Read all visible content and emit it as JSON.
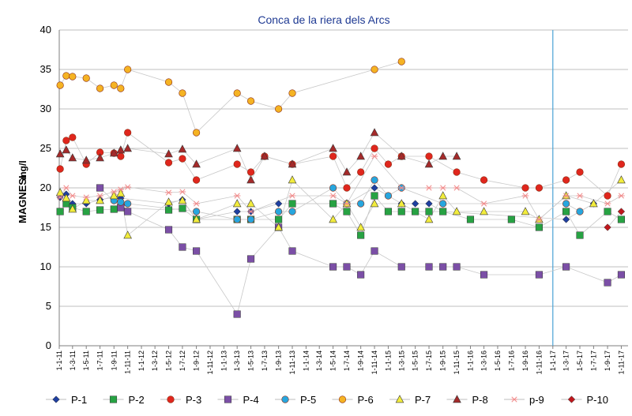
{
  "chart_data": {
    "type": "line",
    "title": "Conca de la riera dels Arcs",
    "ylabel_main": "MAGNESI",
    "ylabel_unit": "mg/l",
    "ylim": [
      0,
      40
    ],
    "yticks": [
      "0",
      "5",
      "10",
      "15",
      "20",
      "25",
      "30",
      "35",
      "40"
    ],
    "x_start": "2011-01-01",
    "x_end": "2017-12-01",
    "xticks": [
      "1-1-11",
      "1-3-11",
      "1-5-11",
      "1-7-11",
      "1-9-11",
      "1-11-11",
      "1-1-12",
      "1-3-12",
      "1-5-12",
      "1-7-12",
      "1-9-12",
      "1-11-12",
      "1-1-13",
      "1-3-13",
      "1-5-13",
      "1-7-13",
      "1-9-13",
      "1-11-13",
      "1-1-14",
      "1-3-14",
      "1-5-14",
      "1-7-14",
      "1-9-14",
      "1-11-14",
      "1-1-15",
      "1-3-15",
      "1-5-15",
      "1-7-15",
      "1-9-15",
      "1-11-15",
      "1-1-16",
      "1-3-16",
      "1-5-16",
      "1-7-16",
      "1-9-16",
      "1-11-16",
      "1-1-17",
      "1-3-17",
      "1-5-17",
      "1-7-17",
      "1-9-17",
      "1-11-17"
    ],
    "vline_date": "2017-01-01",
    "grid": "horizontal",
    "legend_position": "bottom",
    "series": [
      {
        "name": "P-1",
        "color": "#1f3fa0",
        "marker": "diamond",
        "points": [
          [
            "2011-01-05",
            18.8
          ],
          [
            "2011-02-01",
            19.2
          ],
          [
            "2011-03-01",
            18
          ],
          [
            "2011-05-01",
            18
          ],
          [
            "2011-07-01",
            18.5
          ],
          [
            "2011-09-01",
            18.8
          ],
          [
            "2011-10-01",
            18.7
          ],
          [
            "2012-05-01",
            18
          ],
          [
            "2012-07-01",
            18.5
          ],
          [
            "2012-09-01",
            16
          ],
          [
            "2013-03-01",
            17
          ],
          [
            "2013-05-01",
            17
          ],
          [
            "2013-09-01",
            18
          ],
          [
            "2014-07-01",
            18
          ],
          [
            "2014-11-01",
            20
          ],
          [
            "2015-01-01",
            19
          ],
          [
            "2015-03-01",
            18
          ],
          [
            "2015-05-01",
            18
          ],
          [
            "2015-07-01",
            18
          ],
          [
            "2015-09-01",
            17
          ],
          [
            "2017-03-01",
            16
          ],
          [
            "2017-05-01",
            17
          ],
          [
            "2017-07-01",
            18
          ]
        ]
      },
      {
        "name": "P-2",
        "color": "#27a243",
        "marker": "square",
        "points": [
          [
            "2011-01-05",
            17
          ],
          [
            "2011-02-01",
            18
          ],
          [
            "2011-03-01",
            17.5
          ],
          [
            "2011-05-01",
            17
          ],
          [
            "2011-07-01",
            17.2
          ],
          [
            "2011-09-01",
            17.3
          ],
          [
            "2011-10-01",
            17.5
          ],
          [
            "2012-05-01",
            17.2
          ],
          [
            "2012-07-01",
            17.4
          ],
          [
            "2012-09-01",
            16
          ],
          [
            "2013-03-01",
            16
          ],
          [
            "2013-05-01",
            16
          ],
          [
            "2013-09-01",
            16
          ],
          [
            "2013-11-01",
            18
          ],
          [
            "2014-05-01",
            18
          ],
          [
            "2014-07-01",
            17
          ],
          [
            "2014-09-01",
            14
          ],
          [
            "2014-11-01",
            19
          ],
          [
            "2015-01-01",
            17
          ],
          [
            "2015-03-01",
            17
          ],
          [
            "2015-05-01",
            17
          ],
          [
            "2015-07-01",
            17
          ],
          [
            "2015-09-01",
            17
          ],
          [
            "2016-01-01",
            16
          ],
          [
            "2016-07-01",
            16
          ],
          [
            "2016-11-01",
            15
          ],
          [
            "2017-03-01",
            17
          ],
          [
            "2017-05-01",
            14
          ],
          [
            "2017-09-01",
            17
          ],
          [
            "2017-11-01",
            16
          ]
        ]
      },
      {
        "name": "P-3",
        "color": "#e0261d",
        "marker": "circle",
        "points": [
          [
            "2011-01-05",
            22.4
          ],
          [
            "2011-02-01",
            26
          ],
          [
            "2011-03-01",
            26.4
          ],
          [
            "2011-05-01",
            23
          ],
          [
            "2011-07-01",
            24.5
          ],
          [
            "2011-09-01",
            24.4
          ],
          [
            "2011-10-01",
            24
          ],
          [
            "2011-11-01",
            27
          ],
          [
            "2012-05-01",
            23.2
          ],
          [
            "2012-07-01",
            23.7
          ],
          [
            "2012-09-01",
            21
          ],
          [
            "2013-03-01",
            23
          ],
          [
            "2013-05-01",
            22
          ],
          [
            "2013-07-01",
            24
          ],
          [
            "2013-11-01",
            23
          ],
          [
            "2014-05-01",
            24
          ],
          [
            "2014-07-01",
            20
          ],
          [
            "2014-09-01",
            22
          ],
          [
            "2014-11-01",
            25
          ],
          [
            "2015-01-01",
            23
          ],
          [
            "2015-03-01",
            24
          ],
          [
            "2015-07-01",
            24
          ],
          [
            "2015-11-01",
            22
          ],
          [
            "2016-03-01",
            21
          ],
          [
            "2016-09-01",
            20
          ],
          [
            "2016-11-01",
            20
          ],
          [
            "2017-03-01",
            21
          ],
          [
            "2017-05-01",
            22
          ],
          [
            "2017-09-01",
            19
          ],
          [
            "2017-11-01",
            23
          ]
        ]
      },
      {
        "name": "P-4",
        "color": "#7b4fa6",
        "marker": "square",
        "points": [
          [
            "2011-07-01",
            20
          ],
          [
            "2011-10-01",
            17.5
          ],
          [
            "2011-11-01",
            17
          ],
          [
            "2012-05-01",
            14.7
          ],
          [
            "2012-07-01",
            12.5
          ],
          [
            "2012-09-01",
            12
          ],
          [
            "2013-03-01",
            4
          ],
          [
            "2013-05-01",
            11
          ],
          [
            "2013-09-01",
            15
          ],
          [
            "2013-11-01",
            12
          ],
          [
            "2014-05-01",
            10
          ],
          [
            "2014-07-01",
            10
          ],
          [
            "2014-09-01",
            9
          ],
          [
            "2014-11-01",
            12
          ],
          [
            "2015-03-01",
            10
          ],
          [
            "2015-07-01",
            10
          ],
          [
            "2015-09-01",
            10
          ],
          [
            "2015-11-01",
            10
          ],
          [
            "2016-03-01",
            9
          ],
          [
            "2016-11-01",
            9
          ],
          [
            "2017-03-01",
            10
          ],
          [
            "2017-09-01",
            8
          ],
          [
            "2017-11-01",
            9
          ]
        ]
      },
      {
        "name": "P-5",
        "color": "#27a6de",
        "marker": "circle",
        "points": [
          [
            "2011-09-01",
            18.4
          ],
          [
            "2011-10-01",
            18.2
          ],
          [
            "2011-11-01",
            18
          ],
          [
            "2012-09-01",
            17
          ],
          [
            "2013-03-01",
            16
          ],
          [
            "2013-05-01",
            16
          ],
          [
            "2013-09-01",
            17
          ],
          [
            "2013-11-01",
            17
          ],
          [
            "2014-05-01",
            20
          ],
          [
            "2014-07-01",
            18
          ],
          [
            "2014-09-01",
            18
          ],
          [
            "2014-11-01",
            21
          ],
          [
            "2015-01-01",
            19
          ],
          [
            "2015-03-01",
            20
          ],
          [
            "2015-09-01",
            18
          ],
          [
            "2017-03-01",
            18
          ],
          [
            "2017-05-01",
            17
          ]
        ]
      },
      {
        "name": "P-6",
        "color": "#f5b323",
        "marker": "circle",
        "points": [
          [
            "2011-01-05",
            33
          ],
          [
            "2011-02-01",
            34.2
          ],
          [
            "2011-03-01",
            34.1
          ],
          [
            "2011-05-01",
            33.9
          ],
          [
            "2011-07-01",
            32.6
          ],
          [
            "2011-09-01",
            33
          ],
          [
            "2011-10-01",
            32.6
          ],
          [
            "2011-11-01",
            35
          ],
          [
            "2012-05-01",
            33.4
          ],
          [
            "2012-07-01",
            32
          ],
          [
            "2012-09-01",
            27
          ],
          [
            "2013-03-01",
            32
          ],
          [
            "2013-05-01",
            31
          ],
          [
            "2013-09-01",
            30
          ],
          [
            "2013-11-01",
            32
          ],
          [
            "2014-11-01",
            35
          ],
          [
            "2015-03-01",
            36
          ]
        ]
      },
      {
        "name": "P-7",
        "color": "#f2ec3c",
        "marker": "triangle",
        "points": [
          [
            "2011-01-05",
            19.4
          ],
          [
            "2011-02-01",
            18.7
          ],
          [
            "2011-03-01",
            17.3
          ],
          [
            "2011-05-01",
            18.4
          ],
          [
            "2011-07-01",
            18.4
          ],
          [
            "2011-09-01",
            19
          ],
          [
            "2011-10-01",
            19.3
          ],
          [
            "2011-11-01",
            14
          ],
          [
            "2012-05-01",
            18.2
          ],
          [
            "2012-07-01",
            18.4
          ],
          [
            "2012-09-01",
            16
          ],
          [
            "2013-03-01",
            18
          ],
          [
            "2013-05-01",
            18
          ],
          [
            "2013-09-01",
            15
          ],
          [
            "2013-11-01",
            21
          ],
          [
            "2014-05-01",
            16
          ],
          [
            "2014-07-01",
            18
          ],
          [
            "2014-09-01",
            15
          ],
          [
            "2014-11-01",
            18
          ],
          [
            "2015-03-01",
            18
          ],
          [
            "2015-07-01",
            16
          ],
          [
            "2015-11-01",
            17
          ],
          [
            "2015-09-01",
            19
          ],
          [
            "2016-03-01",
            17
          ],
          [
            "2016-09-01",
            17
          ],
          [
            "2016-11-01",
            16
          ],
          [
            "2017-03-01",
            19
          ],
          [
            "2017-07-01",
            18
          ],
          [
            "2017-11-01",
            21
          ]
        ]
      },
      {
        "name": "P-8",
        "color": "#a52a2a",
        "marker": "triangle",
        "points": [
          [
            "2011-01-05",
            24.3
          ],
          [
            "2011-02-01",
            24.8
          ],
          [
            "2011-03-01",
            23.8
          ],
          [
            "2011-05-01",
            23.5
          ],
          [
            "2011-07-01",
            23.8
          ],
          [
            "2011-09-01",
            24.4
          ],
          [
            "2011-10-01",
            24.8
          ],
          [
            "2011-11-01",
            25
          ],
          [
            "2012-05-01",
            24.3
          ],
          [
            "2012-07-01",
            24.9
          ],
          [
            "2012-09-01",
            23
          ],
          [
            "2013-03-01",
            25
          ],
          [
            "2013-05-01",
            21
          ],
          [
            "2013-07-01",
            24
          ],
          [
            "2013-11-01",
            23
          ],
          [
            "2014-05-01",
            25
          ],
          [
            "2014-07-01",
            22
          ],
          [
            "2014-09-01",
            24
          ],
          [
            "2014-11-01",
            27
          ],
          [
            "2015-03-01",
            24
          ],
          [
            "2015-07-01",
            23
          ],
          [
            "2015-09-01",
            24
          ],
          [
            "2015-11-01",
            24
          ]
        ]
      },
      {
        "name": "p-9",
        "color": "#f08c8c",
        "marker": "star",
        "points": [
          [
            "2011-01-05",
            18.8
          ],
          [
            "2011-02-01",
            20
          ],
          [
            "2011-03-01",
            19
          ],
          [
            "2011-05-01",
            18.8
          ],
          [
            "2011-07-01",
            19
          ],
          [
            "2011-09-01",
            19.5
          ],
          [
            "2011-10-01",
            19.8
          ],
          [
            "2011-11-01",
            20.1
          ],
          [
            "2012-05-01",
            19.4
          ],
          [
            "2012-07-01",
            19.5
          ],
          [
            "2012-09-01",
            18
          ],
          [
            "2013-03-01",
            19
          ],
          [
            "2013-05-01",
            17
          ],
          [
            "2013-11-01",
            19
          ],
          [
            "2014-05-01",
            19
          ],
          [
            "2014-07-01",
            18
          ],
          [
            "2014-11-01",
            24
          ],
          [
            "2015-03-01",
            20
          ],
          [
            "2015-07-01",
            20
          ],
          [
            "2015-09-01",
            20
          ],
          [
            "2015-11-01",
            20
          ],
          [
            "2016-03-01",
            18
          ],
          [
            "2016-09-01",
            19
          ],
          [
            "2016-11-01",
            16
          ],
          [
            "2017-03-01",
            19
          ],
          [
            "2017-05-01",
            19
          ],
          [
            "2017-09-01",
            18
          ],
          [
            "2017-11-01",
            19
          ]
        ]
      },
      {
        "name": "P-10",
        "color": "#c0171c",
        "marker": "diamond",
        "points": [
          [
            "2017-09-01",
            15
          ],
          [
            "2017-11-01",
            17
          ]
        ]
      }
    ]
  }
}
